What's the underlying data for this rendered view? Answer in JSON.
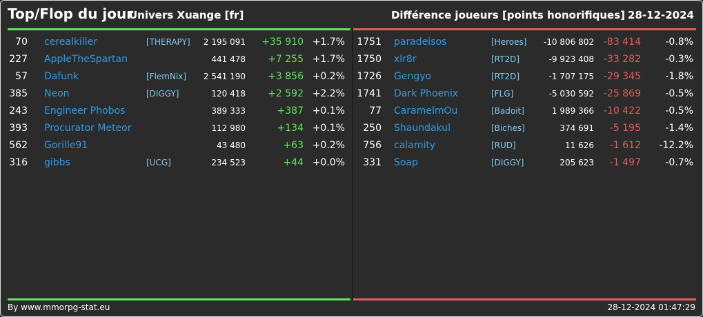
{
  "header": {
    "title": "Top/Flop du jour",
    "subtitle": "Univers Xuange [fr]",
    "metric": "Différence joueurs [points honorifiques]",
    "date": "28-12-2024"
  },
  "colors": {
    "positive": "#5ee85a",
    "negative": "#e35d5a",
    "name": "#2e9ce6",
    "alliance": "#7fc8f0",
    "background": "#2b2b2b"
  },
  "top": [
    {
      "rank": "70",
      "name": "cerealkiller",
      "alliance": "[THERAPY]",
      "points": "2 195 091",
      "diff": "+35 910",
      "pct": "+1.7%"
    },
    {
      "rank": "227",
      "name": "AppleTheSpartan",
      "alliance": "",
      "points": "441 478",
      "diff": "+7 255",
      "pct": "+1.7%"
    },
    {
      "rank": "57",
      "name": "Dafunk",
      "alliance": "[FlemNix]",
      "points": "2 541 190",
      "diff": "+3 856",
      "pct": "+0.2%"
    },
    {
      "rank": "385",
      "name": "Neon",
      "alliance": "[DIGGY]",
      "points": "120 418",
      "diff": "+2 592",
      "pct": "+2.2%"
    },
    {
      "rank": "243",
      "name": "Engineer Phobos",
      "alliance": "",
      "points": "389 333",
      "diff": "+387",
      "pct": "+0.1%"
    },
    {
      "rank": "393",
      "name": "Procurator Meteor",
      "alliance": "",
      "points": "112 980",
      "diff": "+134",
      "pct": "+0.1%"
    },
    {
      "rank": "562",
      "name": "Gorille91",
      "alliance": "",
      "points": "43 480",
      "diff": "+63",
      "pct": "+0.2%"
    },
    {
      "rank": "316",
      "name": "gibbs",
      "alliance": "[UCG]",
      "points": "234 523",
      "diff": "+44",
      "pct": "+0.0%"
    }
  ],
  "flop": [
    {
      "rank": "1751",
      "name": "paradeisos",
      "alliance": "[Heroes]",
      "points": "-10 806 802",
      "diff": "-83 414",
      "pct": "-0.8%"
    },
    {
      "rank": "1750",
      "name": "xlr8r",
      "alliance": "[RT2D]",
      "points": "-9 923 408",
      "diff": "-33 282",
      "pct": "-0.3%"
    },
    {
      "rank": "1726",
      "name": "Gengyo",
      "alliance": "[RT2D]",
      "points": "-1 707 175",
      "diff": "-29 345",
      "pct": "-1.8%"
    },
    {
      "rank": "1741",
      "name": "Dark Phoenix",
      "alliance": "[FLG]",
      "points": "-5 030 592",
      "diff": "-25 869",
      "pct": "-0.5%"
    },
    {
      "rank": "77",
      "name": "CaramelmOu",
      "alliance": "[Badoit]",
      "points": "1 989 366",
      "diff": "-10 422",
      "pct": "-0.5%"
    },
    {
      "rank": "250",
      "name": "Shaundakul",
      "alliance": "[Biches]",
      "points": "374 691",
      "diff": "-5 195",
      "pct": "-1.4%"
    },
    {
      "rank": "756",
      "name": "calamity",
      "alliance": "[RUD]",
      "points": "11 626",
      "diff": "-1 612",
      "pct": "-12.2%"
    },
    {
      "rank": "331",
      "name": "Soap",
      "alliance": "[DIGGY]",
      "points": "205 623",
      "diff": "-1 497",
      "pct": "-0.7%"
    }
  ],
  "footer": {
    "credit": "By www.mmorpg-stat.eu",
    "timestamp": "28-12-2024 01:47:29"
  }
}
